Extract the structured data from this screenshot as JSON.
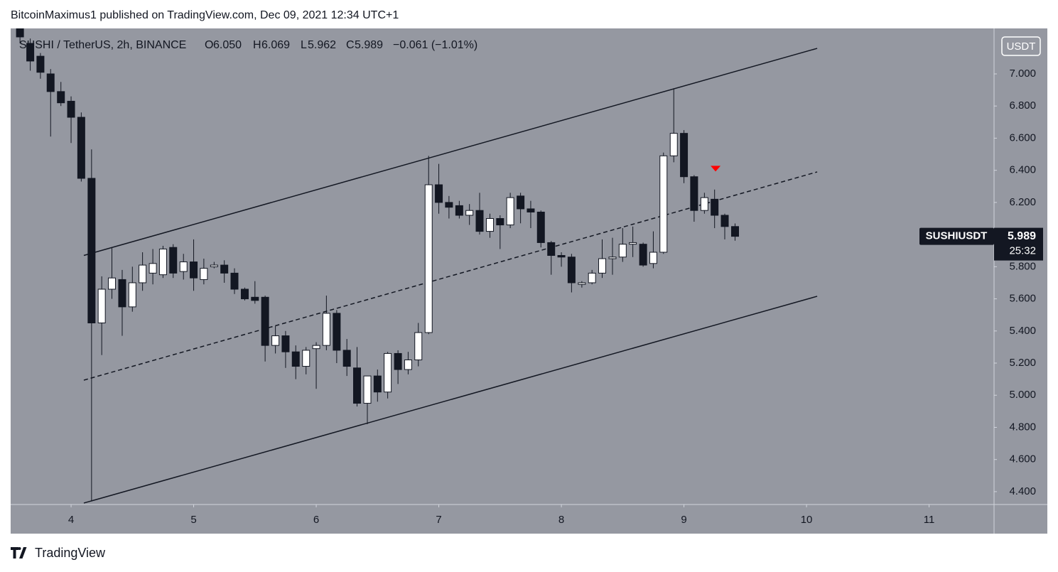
{
  "header": {
    "byline": "BitcoinMaximus1 published on TradingView.com, Dec 09, 2021 12:34 UTC+1"
  },
  "footer": {
    "brand": "TradingView"
  },
  "chart_data": {
    "type": "candlestick",
    "title": "SUSHI / TetherUS, 2h, BINANCE",
    "ohlc_labels": [
      "O",
      "H",
      "L",
      "C"
    ],
    "ohlc_values": [
      "6.050",
      "6.069",
      "5.962",
      "5.989"
    ],
    "change": "−0.061 (−1.01%)",
    "currency": "USDT",
    "symbol": "SUSHIUSDT",
    "last_price": 5.989,
    "countdown": "25:32",
    "up_color": "#ffffff",
    "down_color": "#131722",
    "x": [
      3.583,
      3.667,
      3.75,
      3.833,
      3.917,
      4,
      4.083,
      4.167,
      4.25,
      4.333,
      4.417,
      4.5,
      4.583,
      4.667,
      4.75,
      4.833,
      4.917,
      5,
      5.083,
      5.167,
      5.25,
      5.333,
      5.417,
      5.5,
      5.583,
      5.667,
      5.75,
      5.833,
      5.917,
      6,
      6.083,
      6.167,
      6.25,
      6.333,
      6.417,
      6.5,
      6.583,
      6.667,
      6.75,
      6.833,
      6.917,
      7,
      7.083,
      7.167,
      7.25,
      7.333,
      7.417,
      7.5,
      7.583,
      7.667,
      7.75,
      7.833,
      7.917,
      8,
      8.083,
      8.167,
      8.25,
      8.333,
      8.417,
      8.5,
      8.583,
      8.667,
      8.75,
      8.833,
      8.917,
      9,
      9.083,
      9.167,
      9.25,
      9.333,
      9.417
    ],
    "open": [
      7.3,
      7.19,
      7.11,
      7.0,
      6.89,
      6.83,
      6.73,
      6.35,
      5.45,
      5.66,
      5.72,
      5.55,
      5.7,
      5.76,
      5.75,
      5.92,
      5.77,
      5.83,
      5.72,
      5.8,
      5.81,
      5.76,
      5.66,
      5.61,
      5.61,
      5.31,
      5.37,
      5.27,
      5.18,
      5.29,
      5.31,
      5.51,
      5.28,
      5.17,
      4.95,
      5.12,
      5.02,
      5.26,
      5.16,
      5.22,
      5.39,
      6.31,
      6.2,
      6.18,
      6.12,
      6.15,
      6.02,
      6.1,
      6.06,
      6.24,
      6.16,
      6.14,
      5.95,
      5.87,
      5.86,
      5.69,
      5.7,
      5.76,
      5.85,
      5.86,
      5.94,
      5.94,
      5.82,
      5.89,
      6.49,
      6.63,
      6.36,
      6.15,
      6.22,
      6.12,
      6.05
    ],
    "high": [
      7.32,
      7.22,
      7.13,
      7.03,
      6.95,
      6.86,
      6.76,
      6.53,
      5.74,
      5.92,
      5.78,
      5.8,
      5.89,
      5.91,
      5.93,
      5.94,
      5.88,
      5.97,
      5.85,
      5.83,
      5.84,
      5.79,
      5.67,
      5.71,
      5.62,
      5.43,
      5.4,
      5.31,
      5.3,
      5.33,
      5.62,
      5.53,
      5.35,
      5.3,
      5.12,
      5.16,
      5.27,
      5.28,
      5.27,
      5.45,
      6.49,
      6.44,
      6.24,
      6.21,
      6.19,
      6.26,
      6.13,
      6.12,
      6.26,
      6.26,
      6.21,
      6.15,
      5.96,
      5.89,
      5.88,
      5.71,
      5.78,
      5.97,
      5.98,
      6.04,
      6.05,
      5.95,
      6.02,
      6.51,
      6.91,
      6.65,
      6.37,
      6.26,
      6.28,
      6.13,
      6.069
    ],
    "low": [
      7.19,
      7.02,
      6.97,
      6.61,
      6.8,
      6.57,
      6.33,
      4.34,
      5.25,
      5.6,
      5.37,
      5.52,
      5.65,
      5.69,
      5.73,
      5.73,
      5.72,
      5.65,
      5.69,
      5.79,
      5.7,
      5.63,
      5.59,
      5.57,
      5.21,
      5.26,
      5.17,
      5.1,
      5.13,
      5.04,
      5.28,
      5.2,
      5.12,
      4.93,
      4.82,
      4.96,
      4.98,
      5.07,
      5.13,
      5.18,
      5.38,
      6.13,
      6.1,
      6.1,
      6.06,
      6.0,
      5.98,
      5.91,
      6.04,
      6.07,
      6.04,
      5.92,
      5.75,
      5.8,
      5.64,
      5.67,
      5.69,
      5.73,
      5.75,
      5.83,
      5.86,
      5.8,
      5.79,
      5.88,
      6.45,
      6.32,
      6.08,
      6.13,
      6.04,
      5.97,
      5.962
    ],
    "close": [
      7.23,
      7.08,
      7.01,
      6.89,
      6.82,
      6.73,
      6.35,
      5.45,
      5.66,
      5.73,
      5.55,
      5.7,
      5.81,
      5.82,
      5.91,
      5.76,
      5.83,
      5.73,
      5.79,
      5.81,
      5.76,
      5.66,
      5.6,
      5.59,
      5.31,
      5.37,
      5.27,
      5.18,
      5.28,
      5.31,
      5.51,
      5.28,
      5.18,
      4.95,
      5.12,
      5.02,
      5.26,
      5.16,
      5.22,
      5.39,
      6.31,
      6.2,
      6.17,
      6.12,
      6.15,
      6.02,
      6.1,
      6.06,
      6.23,
      6.16,
      6.14,
      5.95,
      5.87,
      5.86,
      5.7,
      5.7,
      5.76,
      5.85,
      5.86,
      5.94,
      5.95,
      5.81,
      5.89,
      6.49,
      6.63,
      6.36,
      6.15,
      6.23,
      6.12,
      6.05,
      5.989
    ],
    "xlim": [
      3.507,
      11.53
    ],
    "xticks": [
      4,
      5,
      6,
      7,
      8,
      9,
      10,
      11
    ],
    "ylim": [
      4.32,
      7.283
    ],
    "yticks": [
      {
        "value": 4.4,
        "label": "4.400"
      },
      {
        "value": 4.6,
        "label": "4.600"
      },
      {
        "value": 4.8,
        "label": "4.800"
      },
      {
        "value": 5,
        "label": "5.000"
      },
      {
        "value": 5.2,
        "label": "5.200"
      },
      {
        "value": 5.4,
        "label": "5.400"
      },
      {
        "value": 5.6,
        "label": "5.600"
      },
      {
        "value": 5.8,
        "label": "5.800"
      },
      {
        "value": 6,
        "label": "6.000"
      },
      {
        "value": 6.2,
        "label": "6.200"
      },
      {
        "value": 6.4,
        "label": "6.400"
      },
      {
        "value": 6.6,
        "label": "6.600"
      },
      {
        "value": 6.8,
        "label": "6.800"
      },
      {
        "value": 7,
        "label": "7.000"
      }
    ],
    "lines": [
      {
        "x": [
          4.104,
          10.087
        ],
        "y": [
          5.87,
          7.159
        ],
        "style": "solid"
      },
      {
        "x": [
          4.104,
          10.087
        ],
        "y": [
          5.094,
          6.39
        ],
        "style": "dashed"
      },
      {
        "x": [
          4.104,
          10.087
        ],
        "y": [
          4.329,
          5.616
        ],
        "style": "solid"
      }
    ],
    "markers": [
      {
        "x": 9.258,
        "y": 6.41,
        "color": "#ff0000"
      }
    ]
  }
}
